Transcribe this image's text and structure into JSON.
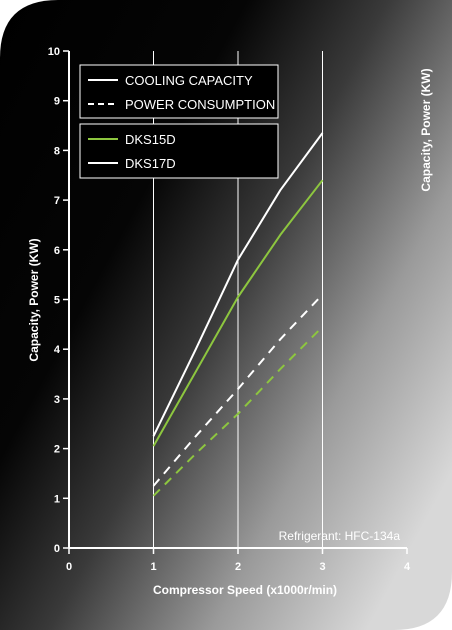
{
  "colors": {
    "background_dark": "#000000",
    "background_light": "#d8d8d8",
    "axis": "#ffffff",
    "series_dks15d": "#8dc63f",
    "series_dks17d": "#ffffff"
  },
  "chart_data": {
    "type": "line",
    "xlabel": "Compressor Speed (x1000r/min)",
    "ylabel": "Capacity, Power (KW)",
    "ylabel_right": "Capacity, Power (KW)",
    "xlim": [
      0,
      4
    ],
    "ylim": [
      0,
      10
    ],
    "x_ticks": [
      "0",
      "1",
      "2",
      "3",
      "4"
    ],
    "y_ticks": [
      "0",
      "1",
      "2",
      "3",
      "4",
      "5",
      "6",
      "7",
      "8",
      "9",
      "10"
    ],
    "grid": "vertical lines at x = 1, 2, 3",
    "legend_style": {
      "entries": [
        {
          "label": "COOLING CAPACITY",
          "line": "solid"
        },
        {
          "label": "POWER CONSUMPTION",
          "line": "dashed"
        }
      ]
    },
    "legend_units": {
      "entries": [
        {
          "label": "DKS15D",
          "color": "#8dc63f"
        },
        {
          "label": "DKS17D",
          "color": "#ffffff"
        }
      ]
    },
    "annotation": "Refrigerant: HFC-134a",
    "series": [
      {
        "name": "DKS17D",
        "metric": "COOLING CAPACITY",
        "style": "solid",
        "color": "#ffffff",
        "points": [
          [
            1.0,
            2.25
          ],
          [
            1.5,
            4.0
          ],
          [
            2.0,
            5.8
          ],
          [
            2.5,
            7.2
          ],
          [
            3.0,
            8.35
          ]
        ]
      },
      {
        "name": "DKS15D",
        "metric": "COOLING CAPACITY",
        "style": "solid",
        "color": "#8dc63f",
        "points": [
          [
            1.0,
            2.05
          ],
          [
            1.5,
            3.55
          ],
          [
            2.0,
            5.05
          ],
          [
            2.5,
            6.3
          ],
          [
            3.0,
            7.4
          ]
        ]
      },
      {
        "name": "DKS17D",
        "metric": "POWER CONSUMPTION",
        "style": "dashed",
        "color": "#ffffff",
        "points": [
          [
            1.0,
            1.25
          ],
          [
            1.5,
            2.25
          ],
          [
            2.0,
            3.2
          ],
          [
            2.5,
            4.2
          ],
          [
            3.0,
            5.1
          ]
        ]
      },
      {
        "name": "DKS15D",
        "metric": "POWER CONSUMPTION",
        "style": "dashed",
        "color": "#8dc63f",
        "points": [
          [
            1.0,
            1.05
          ],
          [
            1.5,
            1.9
          ],
          [
            2.0,
            2.7
          ],
          [
            2.5,
            3.6
          ],
          [
            3.0,
            4.45
          ]
        ]
      }
    ]
  }
}
